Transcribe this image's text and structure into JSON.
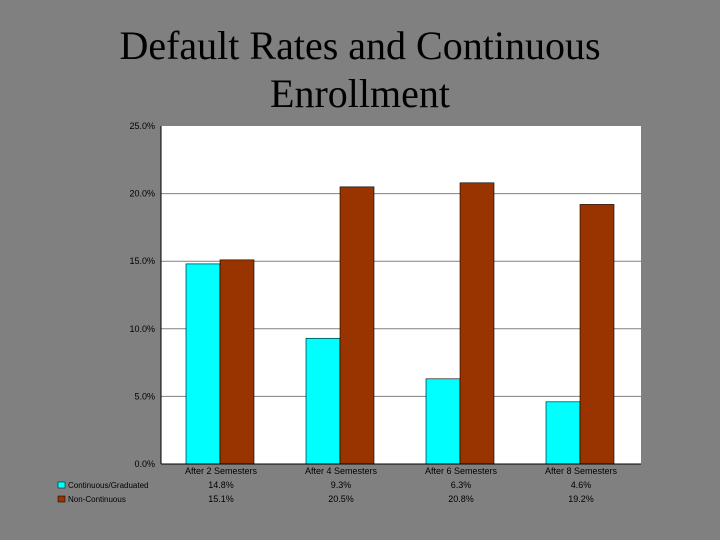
{
  "title_lines": [
    "Default Rates and Continuous",
    "Enrollment"
  ],
  "colors": {
    "background": "#808080",
    "plot_area": "#ffffff",
    "gridline": "#808080",
    "series_1": "#00ffff",
    "series_2": "#993300"
  },
  "chart_data": {
    "type": "bar",
    "title": "Default Rates and Continuous Enrollment",
    "categories": [
      "After 2 Semesters",
      "After 4 Semesters",
      "After 6 Semesters",
      "After 8 Semesters"
    ],
    "series": [
      {
        "name": "Continuous/Graduated",
        "values": [
          14.8,
          9.3,
          6.3,
          4.6
        ],
        "labels": [
          "14.8%",
          "9.3%",
          "6.3%",
          "4.6%"
        ]
      },
      {
        "name": "Non-Continuous",
        "values": [
          15.1,
          20.5,
          20.8,
          19.2
        ],
        "labels": [
          "15.1%",
          "20.5%",
          "20.8%",
          "19.2%"
        ]
      }
    ],
    "ylim": [
      0,
      25
    ],
    "yticks": [
      0,
      5,
      10,
      15,
      20,
      25
    ],
    "ytick_labels": [
      "0.0%",
      "5.0%",
      "10.0%",
      "15.0%",
      "20.0%",
      "25.0%"
    ],
    "grid": true,
    "legend": "data-table-below"
  }
}
